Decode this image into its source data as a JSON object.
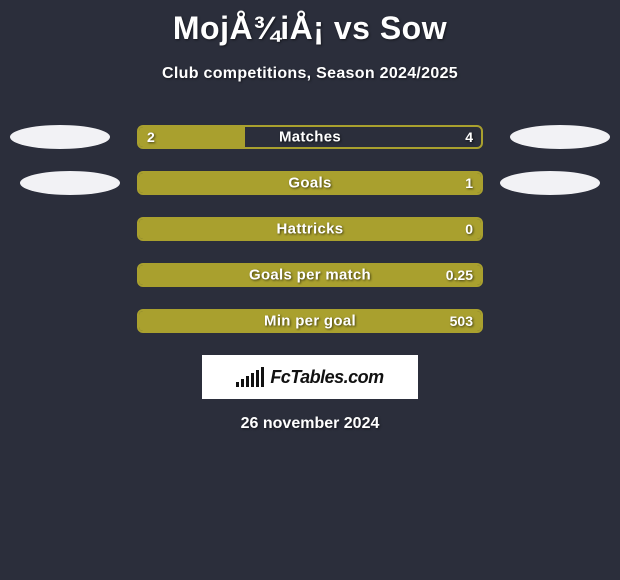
{
  "title": "MojÅ¾iÅ¡ vs Sow",
  "subtitle": "Club competitions, Season 2024/2025",
  "date": "26 november 2024",
  "logo_text": "FcTables.com",
  "colors": {
    "background": "#2b2e3b",
    "bar_fill": "#a9a02e",
    "bar_border": "#a9a02e",
    "ellipse": "#f2f2f5",
    "text": "#ffffff",
    "logo_bg": "#ffffff",
    "logo_text": "#111111"
  },
  "logo_bar_heights": [
    5,
    8,
    11,
    14,
    17,
    20
  ],
  "rows": [
    {
      "label": "Matches",
      "left_value": "2",
      "right_value": "4",
      "left_fill_pct": 31,
      "show_left_value": true,
      "show_ellipses": true
    },
    {
      "label": "Goals",
      "left_value": "",
      "right_value": "1",
      "left_fill_pct": 100,
      "show_left_value": false,
      "show_ellipses": true,
      "left_ellipse_inset": 20,
      "right_ellipse_inset": 20
    },
    {
      "label": "Hattricks",
      "left_value": "",
      "right_value": "0",
      "left_fill_pct": 100,
      "show_left_value": false,
      "show_ellipses": false
    },
    {
      "label": "Goals per match",
      "left_value": "",
      "right_value": "0.25",
      "left_fill_pct": 100,
      "show_left_value": false,
      "show_ellipses": false
    },
    {
      "label": "Min per goal",
      "left_value": "",
      "right_value": "503",
      "left_fill_pct": 100,
      "show_left_value": false,
      "show_ellipses": false
    }
  ]
}
